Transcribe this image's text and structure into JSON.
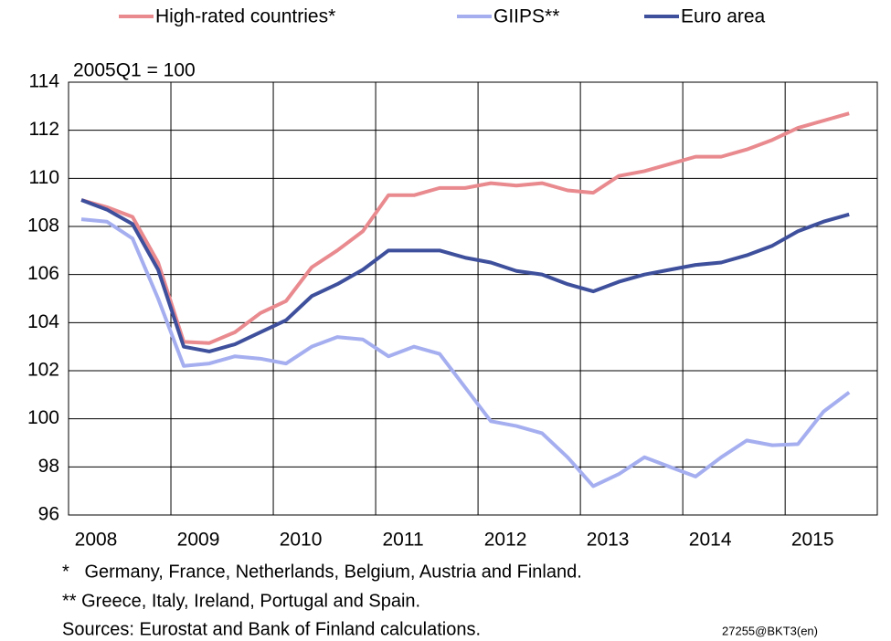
{
  "chart_data": {
    "type": "line",
    "y_unit_label": "2005Q1 = 100",
    "notes": [
      "*   Germany, France, Netherlands, Belgium, Austria and Finland.",
      "** Greece, Italy, Ireland, Portugal and Spain.",
      "Sources: Eurostat and Bank of Finland calculations."
    ],
    "code": "27255@BKT3(en)",
    "x": [
      2008.125,
      2008.375,
      2008.625,
      2008.875,
      2009.125,
      2009.375,
      2009.625,
      2009.875,
      2010.125,
      2010.375,
      2010.625,
      2010.875,
      2011.125,
      2011.375,
      2011.625,
      2011.875,
      2012.125,
      2012.375,
      2012.625,
      2012.875,
      2013.125,
      2013.375,
      2013.625,
      2013.875,
      2014.125,
      2014.375,
      2014.625,
      2014.875,
      2015.125,
      2015.375,
      2015.625
    ],
    "series": [
      {
        "name": "High-rated countries*",
        "color": "#e98a8f",
        "values": [
          109.1,
          108.8,
          108.4,
          106.5,
          103.2,
          103.15,
          103.6,
          104.4,
          104.9,
          106.3,
          107.0,
          107.8,
          109.3,
          109.3,
          109.6,
          109.6,
          109.8,
          109.7,
          109.8,
          109.5,
          109.4,
          110.1,
          110.3,
          110.6,
          110.9,
          110.9,
          111.2,
          111.6,
          112.1,
          112.4,
          112.7
        ]
      },
      {
        "name": "GIIPS**",
        "color": "#a5aff0",
        "values": [
          108.3,
          108.2,
          107.5,
          105.0,
          102.2,
          102.3,
          102.6,
          102.5,
          102.3,
          103.0,
          103.4,
          103.3,
          102.6,
          103.0,
          102.7,
          101.3,
          99.9,
          99.7,
          99.4,
          98.4,
          97.2,
          97.7,
          98.4,
          98.0,
          97.6,
          98.4,
          99.1,
          98.9,
          98.95,
          100.3,
          101.1
        ]
      },
      {
        "name": "Euro area",
        "color": "#3e4f9c",
        "values": [
          109.1,
          108.7,
          108.1,
          106.2,
          103.0,
          102.8,
          103.1,
          103.6,
          104.1,
          105.1,
          105.6,
          106.2,
          107.0,
          107.0,
          107.0,
          106.7,
          106.5,
          106.15,
          106.0,
          105.6,
          105.3,
          105.7,
          106.0,
          106.2,
          106.4,
          106.5,
          106.8,
          107.2,
          107.8,
          108.2,
          108.5
        ]
      }
    ],
    "xlim": [
      2008,
      2015.9
    ],
    "xticks": [
      2008,
      2009,
      2010,
      2011,
      2012,
      2013,
      2014,
      2015
    ],
    "ylim": [
      96,
      114
    ],
    "yticks": [
      96,
      98,
      100,
      102,
      104,
      106,
      108,
      110,
      112,
      114
    ],
    "grid": true
  }
}
